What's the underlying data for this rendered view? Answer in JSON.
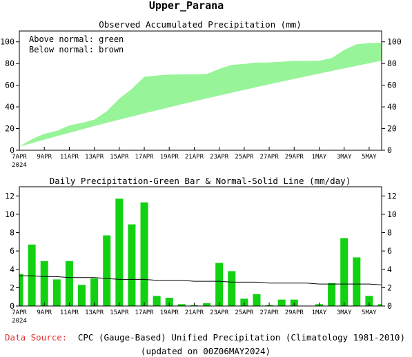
{
  "page": {
    "title": "Upper_Parana",
    "source_label": "Data Source:",
    "source_text": "CPC (Gauge-Based) Unified Precipitation (Climatology 1981-2010)",
    "updated": "(updated on 00Z06MAY2024)"
  },
  "colors": {
    "above_normal": "#98f498",
    "daily_bar": "#11d111",
    "normal_line": "#000000",
    "source_label": "#e03030",
    "text": "#000000"
  },
  "chart_data": [
    {
      "type": "area",
      "title": "Observed Accumulated Precipitation (mm)",
      "legend": [
        "Above normal: green",
        "Below normal: brown"
      ],
      "legend_position": "top-left",
      "x_tick_labels": [
        "7APR",
        "9APR",
        "11APR",
        "13APR",
        "15APR",
        "17APR",
        "19APR",
        "21APR",
        "23APR",
        "25APR",
        "27APR",
        "29APR",
        "1MAY",
        "3MAY",
        "5MAY"
      ],
      "x_year_label": "2024",
      "ylim": [
        0,
        110
      ],
      "yticks": [
        0,
        20,
        40,
        60,
        80,
        100
      ],
      "x": [
        "7APR",
        "8APR",
        "9APR",
        "10APR",
        "11APR",
        "12APR",
        "13APR",
        "14APR",
        "15APR",
        "16APR",
        "17APR",
        "18APR",
        "19APR",
        "20APR",
        "21APR",
        "22APR",
        "23APR",
        "24APR",
        "25APR",
        "26APR",
        "27APR",
        "28APR",
        "29APR",
        "30APR",
        "1MAY",
        "2MAY",
        "3MAY",
        "4MAY",
        "5MAY",
        "6MAY"
      ],
      "series": [
        {
          "name": "Observed",
          "values": [
            3.5,
            10.2,
            15.1,
            18.0,
            22.9,
            25.2,
            28.2,
            35.9,
            47.6,
            56.5,
            67.8,
            68.9,
            69.8,
            70.0,
            70.0,
            70.3,
            75.0,
            78.8,
            79.6,
            80.9,
            81.0,
            81.7,
            82.4,
            82.4,
            82.6,
            85.1,
            92.5,
            97.8,
            98.9,
            99.1
          ]
        },
        {
          "name": "Normal",
          "values": [
            3.3,
            6.6,
            9.8,
            13.0,
            16.1,
            19.2,
            22.3,
            25.3,
            28.2,
            31.1,
            34.0,
            36.8,
            39.6,
            42.4,
            45.1,
            47.8,
            50.5,
            53.1,
            55.7,
            58.3,
            60.8,
            63.3,
            65.8,
            68.3,
            70.7,
            73.1,
            75.5,
            77.9,
            80.3,
            82.6
          ]
        }
      ]
    },
    {
      "type": "bar",
      "title": "Daily Precipitation-Green Bar & Normal-Solid Line (mm/day)",
      "x_tick_labels": [
        "7APR",
        "9APR",
        "11APR",
        "13APR",
        "15APR",
        "17APR",
        "19APR",
        "21APR",
        "23APR",
        "25APR",
        "27APR",
        "29APR",
        "1MAY",
        "3MAY",
        "5MAY"
      ],
      "x_year_label": "2024",
      "ylim": [
        0,
        13
      ],
      "yticks": [
        0,
        2,
        4,
        6,
        8,
        10,
        12
      ],
      "categories": [
        "7APR",
        "8APR",
        "9APR",
        "10APR",
        "11APR",
        "12APR",
        "13APR",
        "14APR",
        "15APR",
        "16APR",
        "17APR",
        "18APR",
        "19APR",
        "20APR",
        "21APR",
        "22APR",
        "23APR",
        "24APR",
        "25APR",
        "26APR",
        "27APR",
        "28APR",
        "29APR",
        "30APR",
        "1MAY",
        "2MAY",
        "3MAY",
        "4MAY",
        "5MAY",
        "6MAY"
      ],
      "series": [
        {
          "name": "Daily Precipitation",
          "values": [
            3.5,
            6.7,
            4.9,
            2.9,
            4.9,
            2.3,
            3.0,
            7.7,
            11.7,
            8.9,
            11.3,
            1.1,
            0.9,
            0.2,
            0.1,
            0.3,
            4.7,
            3.8,
            0.8,
            1.3,
            0.1,
            0.7,
            0.7,
            0.0,
            0.2,
            2.5,
            7.4,
            5.3,
            1.1,
            0.2
          ]
        },
        {
          "name": "Normal",
          "values": [
            3.3,
            3.3,
            3.2,
            3.2,
            3.1,
            3.1,
            3.1,
            3.0,
            2.9,
            2.9,
            2.9,
            2.8,
            2.8,
            2.8,
            2.7,
            2.7,
            2.7,
            2.6,
            2.6,
            2.6,
            2.5,
            2.5,
            2.5,
            2.5,
            2.4,
            2.4,
            2.4,
            2.4,
            2.4,
            2.3
          ]
        }
      ]
    }
  ]
}
